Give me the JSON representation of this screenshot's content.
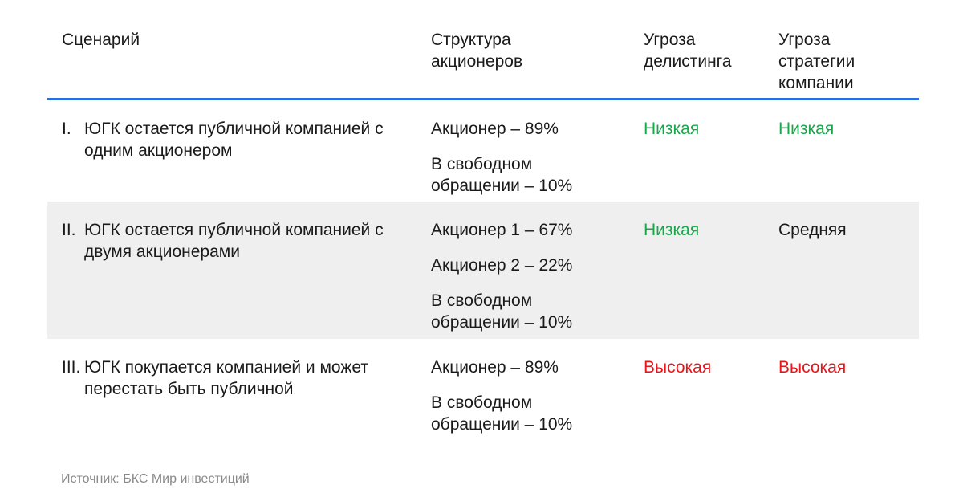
{
  "headers": {
    "scenario": "Сценарий",
    "structure": "Структура\nакционеров",
    "delisting": "Угроза\nделистинга",
    "strategy": "Угроза\nстратегии\nкомпании"
  },
  "rows": [
    {
      "num": "I.",
      "scenario": "ЮГК остается публичной компанией с одним акционером",
      "structure": [
        "Акционер – 89%",
        "В свободном\nобращении – 10%"
      ],
      "delisting": "Низкая",
      "strategy": "Низкая"
    },
    {
      "num": "II.",
      "scenario": "ЮГК остается публичной компанией с двумя акционерами",
      "structure": [
        "Акционер 1 – 67%",
        "Акционер 2 – 22%",
        "В свободном\nобращении – 10%"
      ],
      "delisting": "Низкая",
      "strategy": "Средняя"
    },
    {
      "num": "III.",
      "scenario": "ЮГК покупается компанией и может перестать быть публичной",
      "structure": [
        "Акционер – 89%",
        "В свободном\nобращении – 10%"
      ],
      "delisting": "Высокая",
      "strategy": "Высокая"
    }
  ],
  "colors": {
    "low": "#1aa64a",
    "medium": "#1a1a1a",
    "high": "#e8161b",
    "header_rule": "#2a6fe0",
    "shaded_row": "#efefef"
  },
  "source": "Источник: БКС Мир инвестиций"
}
